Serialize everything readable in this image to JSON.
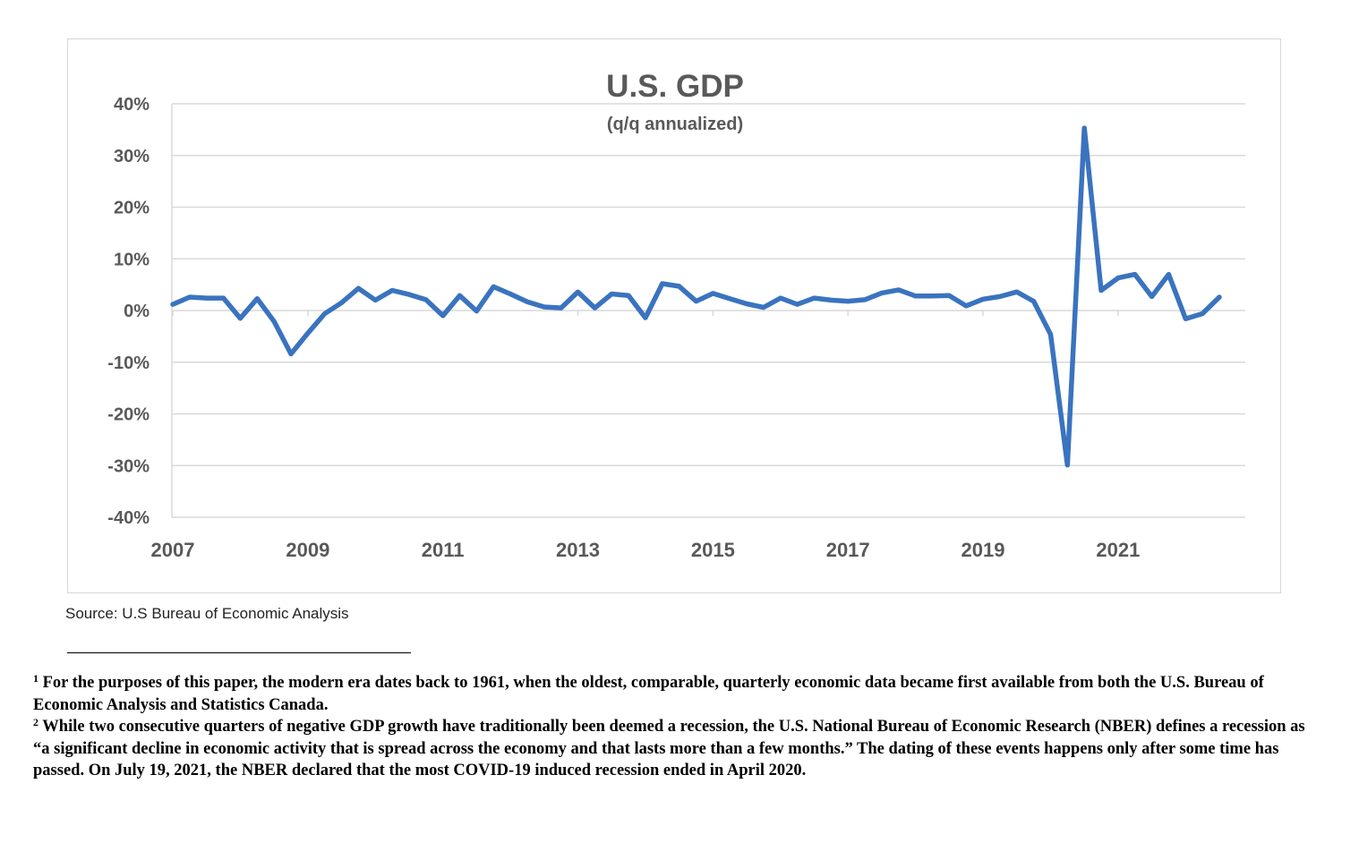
{
  "chart_data": {
    "type": "line",
    "title": "U.S. GDP",
    "subtitle": "(q/q annualized)",
    "xlabel": "",
    "ylabel": "",
    "x_tick_labels": [
      "2007",
      "2009",
      "2011",
      "2013",
      "2015",
      "2017",
      "2019",
      "2021"
    ],
    "y_tick_labels": [
      "40%",
      "30%",
      "20%",
      "10%",
      "0%",
      "-10%",
      "-20%",
      "-30%",
      "-40%"
    ],
    "ylim": [
      -40,
      40
    ],
    "xlim": [
      2007.0,
      2022.5
    ],
    "grid": true,
    "line_color": "#3a73bf",
    "series": [
      {
        "x": [
          2007.0,
          2007.25,
          2007.5,
          2007.75,
          2008.0,
          2008.25,
          2008.5,
          2008.75,
          2009.0,
          2009.25,
          2009.5,
          2009.75,
          2010.0,
          2010.25,
          2010.5,
          2010.75,
          2011.0,
          2011.25,
          2011.5,
          2011.75,
          2012.0,
          2012.25,
          2012.5,
          2012.75,
          2013.0,
          2013.25,
          2013.5,
          2013.75,
          2014.0,
          2014.25,
          2014.5,
          2014.75,
          2015.0,
          2015.25,
          2015.5,
          2015.75,
          2016.0,
          2016.25,
          2016.5,
          2016.75,
          2017.0,
          2017.25,
          2017.5,
          2017.75,
          2018.0,
          2018.25,
          2018.5,
          2018.75,
          2019.0,
          2019.25,
          2019.5,
          2019.75,
          2020.0,
          2020.25,
          2020.5,
          2020.75,
          2021.0,
          2021.25,
          2021.5,
          2021.75,
          2022.0,
          2022.25,
          2022.5
        ],
        "values": [
          1.2,
          2.6,
          2.4,
          2.4,
          -1.5,
          2.3,
          -2.1,
          -8.4,
          -4.4,
          -0.6,
          1.5,
          4.3,
          2.0,
          3.9,
          3.1,
          2.1,
          -1.0,
          2.9,
          -0.1,
          4.6,
          3.2,
          1.7,
          0.7,
          0.5,
          3.6,
          0.5,
          3.2,
          2.9,
          -1.4,
          5.2,
          4.7,
          1.8,
          3.3,
          2.3,
          1.3,
          0.6,
          2.4,
          1.2,
          2.4,
          2.0,
          1.8,
          2.1,
          3.4,
          4.0,
          2.8,
          2.8,
          2.9,
          0.9,
          2.2,
          2.7,
          3.6,
          1.8,
          -4.6,
          -29.9,
          35.3,
          3.9,
          6.3,
          7.0,
          2.7,
          7.0,
          -1.6,
          -0.6,
          2.6
        ]
      }
    ]
  },
  "source_note": "Source: U.S Bureau of Economic Analysis",
  "footnotes": [
    {
      "marker": "1",
      "text": " For the purposes of this paper, the modern era dates back to 1961, when the oldest, comparable, quarterly economic data became first available from both the U.S. Bureau of Economic Analysis and Statistics Canada."
    },
    {
      "marker": "2",
      "text": " While two consecutive quarters of negative GDP growth have traditionally been deemed a recession, the U.S. National Bureau of Economic Research (NBER) defines a recession as “a significant decline in economic activity that is spread across the economy and that lasts more than a few months.” The dating of these events happens only after some time has passed. On July 19, 2021, the NBER declared that the most COVID-19 induced recession ended in April 2020."
    }
  ]
}
